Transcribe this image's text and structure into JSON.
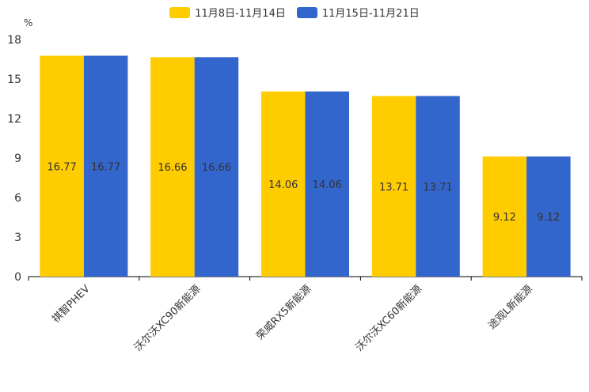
{
  "chart_data": {
    "type": "bar",
    "unit": "%",
    "categories": [
      "祺智PHEV",
      "沃尔沃XC90新能源",
      "荣威RX5新能源",
      "沃尔沃XC60新能源",
      "途观L新能源"
    ],
    "series": [
      {
        "name": "11月8日-11月14日",
        "color": "#FFCC00",
        "values": [
          16.77,
          16.66,
          14.06,
          13.71,
          9.12
        ]
      },
      {
        "name": "11月15日-11月21日",
        "color": "#3366CC",
        "values": [
          16.77,
          16.66,
          14.06,
          13.71,
          9.12
        ]
      }
    ],
    "ylim": [
      0,
      18
    ],
    "yticks": [
      0,
      3,
      6,
      9,
      12,
      15,
      18
    ],
    "legend_position": "top-center",
    "grid": false
  }
}
